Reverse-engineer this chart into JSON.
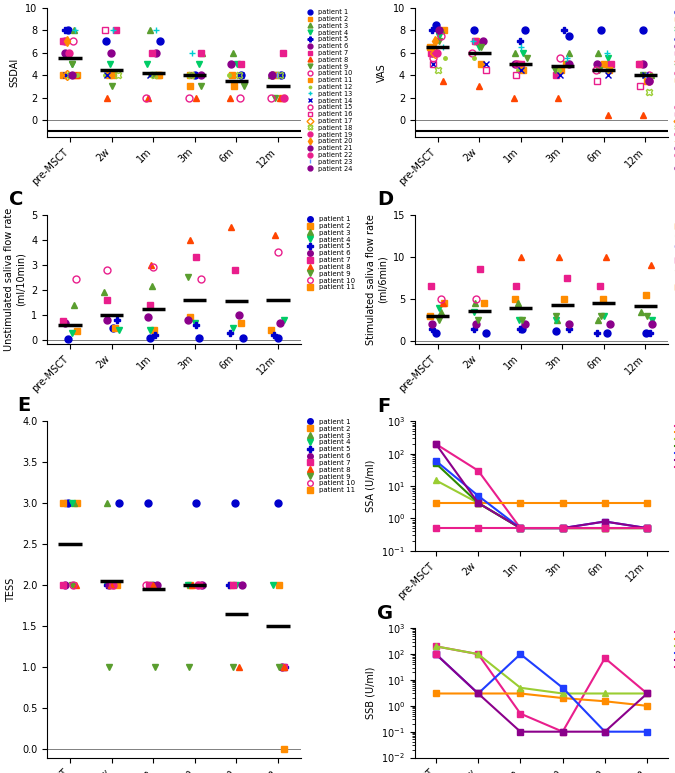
{
  "timepoints": [
    "pre-MSCT",
    "2w",
    "1m",
    "3m",
    "6m",
    "12m"
  ],
  "ssdai_medians": [
    5.5,
    4.5,
    4.2,
    4.0,
    3.5,
    3.0
  ],
  "vas_medians": [
    6.5,
    6.0,
    5.0,
    4.8,
    4.5,
    4.0
  ],
  "unstim_medians": [
    0.6,
    1.0,
    1.25,
    1.6,
    1.55,
    1.6
  ],
  "stim_medians": [
    3.0,
    3.6,
    4.0,
    4.3,
    4.5,
    4.2
  ],
  "tess_medians": [
    2.5,
    2.05,
    1.95,
    2.0,
    1.65,
    1.5
  ],
  "ssdai_data": {
    "patient 1": [
      8.0,
      7.0,
      7.0,
      4.0,
      4.0,
      4.0
    ],
    "patient 2": [
      4.0,
      4.0,
      4.0,
      3.0,
      3.0,
      2.0
    ],
    "patient 3": [
      8.0,
      null,
      8.0,
      6.0,
      6.0,
      4.0
    ],
    "patient 4": [
      5.0,
      5.0,
      5.0,
      5.0,
      5.0,
      4.0
    ],
    "patient 5": [
      8.0,
      null,
      null,
      null,
      null,
      null
    ],
    "patient 6": [
      6.0,
      6.0,
      6.0,
      4.0,
      5.0,
      4.0
    ],
    "patient 7": [
      7.0,
      8.0,
      6.0,
      6.0,
      5.0,
      6.0
    ],
    "patient 8": [
      4.0,
      2.0,
      2.0,
      2.0,
      2.0,
      2.0
    ],
    "patient 9": [
      5.0,
      3.0,
      4.0,
      3.0,
      3.0,
      2.0
    ],
    "patient 10": [
      7.0,
      null,
      2.0,
      2.0,
      2.0,
      2.0
    ],
    "patient 11": [
      4.0,
      4.0,
      4.0,
      4.0,
      4.0,
      4.0
    ],
    "patient 12": [
      4.0,
      4.0,
      4.0,
      4.0,
      4.0,
      4.0
    ],
    "patient 13": [
      8.0,
      8.0,
      8.0,
      6.0,
      null,
      null
    ],
    "patient 14": [
      4.0,
      4.0,
      4.0,
      4.0,
      4.0,
      4.0
    ],
    "patient 15": [
      7.0,
      null,
      null,
      null,
      null,
      null
    ],
    "patient 16": [
      7.0,
      8.0,
      null,
      null,
      null,
      null
    ],
    "patient 17": [
      4.0,
      null,
      null,
      null,
      null,
      null
    ],
    "patient 18": [
      4.0,
      4.0,
      4.0,
      4.0,
      4.0,
      4.0
    ],
    "patient 19": [
      6.0,
      null,
      null,
      null,
      null,
      null
    ],
    "patient 20": [
      7.0,
      null,
      null,
      null,
      null,
      null
    ],
    "patient 21": [
      4.0,
      null,
      null,
      null,
      null,
      null
    ],
    "patient 22": [
      null,
      null,
      null,
      null,
      null,
      2.0
    ],
    "patient 23": [
      null,
      null,
      null,
      null,
      null,
      4.0
    ],
    "patient 24": [
      null,
      null,
      null,
      null,
      null,
      4.0
    ]
  },
  "vas_data": {
    "patient 1": [
      8.5,
      8.0,
      8.0,
      7.5,
      8.0,
      8.0
    ],
    "patient 2": [
      8.0,
      7.0,
      5.0,
      5.0,
      5.0,
      5.0
    ],
    "patient 3": [
      8.0,
      7.0,
      6.0,
      6.0,
      6.0,
      4.0
    ],
    "patient 4": [
      7.5,
      6.5,
      6.0,
      5.0,
      5.5,
      3.5
    ],
    "patient 5": [
      8.0,
      null,
      7.0,
      8.0,
      null,
      null
    ],
    "patient 6": [
      6.0,
      7.0,
      5.0,
      5.0,
      5.0,
      5.0
    ],
    "patient 7": [
      6.0,
      7.0,
      5.0,
      4.0,
      5.0,
      5.0
    ],
    "patient 8": [
      3.5,
      3.0,
      2.0,
      2.0,
      0.5,
      0.5
    ],
    "patient 9": [
      7.0,
      6.5,
      5.5,
      4.5,
      4.5,
      4.0
    ],
    "patient 10": [
      7.5,
      6.0,
      5.0,
      5.5,
      4.5,
      4.0
    ],
    "patient 11": [
      6.5,
      5.0,
      4.5,
      4.5,
      4.5,
      3.5
    ],
    "patient 12": [
      5.5,
      5.5,
      4.5,
      4.5,
      4.5,
      4.0
    ],
    "patient 13": [
      6.5,
      7.0,
      6.5,
      5.5,
      6.0,
      null
    ],
    "patient 14": [
      5.0,
      5.0,
      4.5,
      4.0,
      4.0,
      4.0
    ],
    "patient 15": [
      5.5,
      null,
      null,
      null,
      null,
      null
    ],
    "patient 16": [
      5.0,
      4.5,
      4.0,
      null,
      3.5,
      3.0
    ],
    "patient 17": [
      6.0,
      null,
      null,
      null,
      null,
      null
    ],
    "patient 18": [
      4.5,
      null,
      null,
      null,
      null,
      2.5
    ],
    "patient 19": [
      6.0,
      null,
      null,
      null,
      null,
      null
    ],
    "patient 20": [
      7.0,
      null,
      null,
      null,
      null,
      null
    ],
    "patient 21": [
      8.0,
      null,
      null,
      null,
      null,
      null
    ],
    "patient 22": [
      null,
      null,
      null,
      null,
      null,
      3.5
    ],
    "patient 23": [
      null,
      null,
      null,
      null,
      null,
      4.0
    ],
    "patient 24": [
      null,
      null,
      null,
      null,
      null,
      3.5
    ]
  },
  "unstim_data": {
    "patient 1": [
      0.05,
      0.5,
      0.1,
      0.1,
      0.1,
      0.1
    ],
    "patient 2": [
      0.35,
      0.5,
      0.4,
      0.9,
      0.7,
      0.4
    ],
    "patient 3": [
      1.4,
      1.9,
      2.15,
      null,
      null,
      null
    ],
    "patient 4": [
      0.3,
      0.4,
      0.4,
      0.7,
      0.5,
      0.8
    ],
    "patient 5": [
      0.7,
      0.8,
      0.2,
      0.6,
      0.3,
      0.2
    ],
    "patient 6": [
      0.7,
      0.8,
      0.9,
      0.8,
      1.0,
      0.7
    ],
    "patient 7": [
      0.75,
      1.6,
      1.4,
      3.3,
      2.8,
      null
    ],
    "patient 8": [
      null,
      null,
      3.0,
      4.0,
      4.5,
      4.2
    ],
    "patient 9": [
      null,
      null,
      null,
      2.5,
      null,
      null
    ],
    "patient 10": [
      2.45,
      2.8,
      2.9,
      2.45,
      null,
      3.5
    ],
    "patient 11": [
      null,
      null,
      null,
      null,
      null,
      null
    ]
  },
  "stim_data": {
    "patient 1": [
      1.0,
      1.0,
      1.5,
      1.2,
      1.0,
      1.0
    ],
    "patient 2": [
      4.5,
      4.5,
      5.0,
      5.0,
      5.0,
      5.5
    ],
    "patient 3": [
      3.5,
      4.5,
      4.5,
      2.5,
      2.5,
      3.5
    ],
    "patient 4": [
      4.0,
      3.5,
      2.5,
      2.5,
      3.0,
      2.5
    ],
    "patient 5": [
      1.5,
      1.5,
      1.5,
      1.5,
      1.0,
      1.0
    ],
    "patient 6": [
      2.0,
      2.0,
      2.0,
      2.0,
      2.0,
      2.0
    ],
    "patient 7": [
      6.5,
      8.5,
      6.5,
      7.5,
      6.5,
      null
    ],
    "patient 8": [
      4.5,
      null,
      10.0,
      10.0,
      10.0,
      9.0
    ],
    "patient 9": [
      2.5,
      2.5,
      2.5,
      3.0,
      3.0,
      3.0
    ],
    "patient 10": [
      5.0,
      5.0,
      null,
      null,
      null,
      null
    ],
    "patient 11": [
      3.0,
      null,
      null,
      null,
      null,
      null
    ]
  },
  "tess_data": {
    "patient 1": [
      3.0,
      3.0,
      3.0,
      3.0,
      3.0,
      3.0
    ],
    "patient 2": [
      3.0,
      2.0,
      2.0,
      2.0,
      2.0,
      2.0
    ],
    "patient 3": [
      3.0,
      3.0,
      null,
      null,
      null,
      null
    ],
    "patient 4": [
      3.0,
      2.0,
      2.0,
      2.0,
      2.0,
      2.0
    ],
    "patient 5": [
      3.0,
      2.0,
      2.0,
      2.0,
      2.0,
      1.0
    ],
    "patient 6": [
      2.0,
      2.0,
      2.0,
      2.0,
      2.0,
      1.0
    ],
    "patient 7": [
      2.0,
      2.0,
      2.0,
      2.0,
      2.0,
      1.0
    ],
    "patient 8": [
      2.0,
      2.0,
      2.0,
      2.0,
      1.0,
      1.0
    ],
    "patient 9": [
      2.0,
      1.0,
      1.0,
      1.0,
      1.0,
      1.0
    ],
    "patient 10": [
      2.0,
      2.0,
      2.0,
      2.0,
      null,
      null
    ],
    "patient 11": [
      3.0,
      null,
      null,
      null,
      null,
      0.0
    ]
  },
  "ssa_data": {
    "patient 1": [
      200.0,
      30.0,
      0.5,
      0.5,
      0.5,
      0.5
    ],
    "patient 2": [
      3.0,
      3.0,
      3.0,
      3.0,
      3.0,
      3.0
    ],
    "patient 3": [
      15.0,
      3.0,
      0.5,
      0.5,
      0.5,
      0.5
    ],
    "patient 4": [
      50.0,
      3.0,
      0.5,
      0.5,
      0.5,
      0.5
    ],
    "patient 5": [
      60.0,
      5.0,
      0.5,
      0.5,
      0.8,
      0.5
    ],
    "patient 6": [
      200.0,
      3.0,
      0.5,
      0.5,
      0.8,
      0.5
    ],
    "patient 7": [
      0.5,
      0.5,
      0.5,
      0.5,
      0.5,
      0.5
    ]
  },
  "ssb_data": {
    "patient 1": [
      200.0,
      100.0,
      0.5,
      0.1,
      70.0,
      3.0
    ],
    "patient 2": [
      3.0,
      3.0,
      3.0,
      2.0,
      1.5,
      1.0
    ],
    "patient 3": [
      200.0,
      100.0,
      5.0,
      3.0,
      3.0,
      3.0
    ],
    "patient 4": [
      100.0,
      3.0,
      100.0,
      5.0,
      0.1,
      0.1
    ],
    "patient 5": [
      100.0,
      3.0,
      0.1,
      0.1,
      0.1,
      3.0
    ],
    "patient 6": [
      100.0,
      null,
      null,
      null,
      null,
      null
    ]
  },
  "ssa_colors": {
    "patient 1": "#e91e8c",
    "patient 2": "#ff8c00",
    "patient 3": "#9acd32",
    "patient 4": "#2e8b00",
    "patient 5": "#1f3dff",
    "patient 6": "#8b008b",
    "patient 7": "#e91e8c"
  },
  "ssb_colors": {
    "patient 1": "#e91e8c",
    "patient 2": "#ff8c00",
    "patient 3": "#9acd32",
    "patient 4": "#1f3dff",
    "patient 5": "#8b008b",
    "patient 6": "#e91e8c"
  },
  "ssa_markers": {
    "patient 1": "s",
    "patient 2": "s",
    "patient 3": "^",
    "patient 4": "s",
    "patient 5": "s",
    "patient 6": "s",
    "patient 7": "s"
  },
  "ssb_markers": {
    "patient 1": "s",
    "patient 2": "s",
    "patient 3": "^",
    "patient 4": "s",
    "patient 5": "s",
    "patient 6": "s"
  }
}
